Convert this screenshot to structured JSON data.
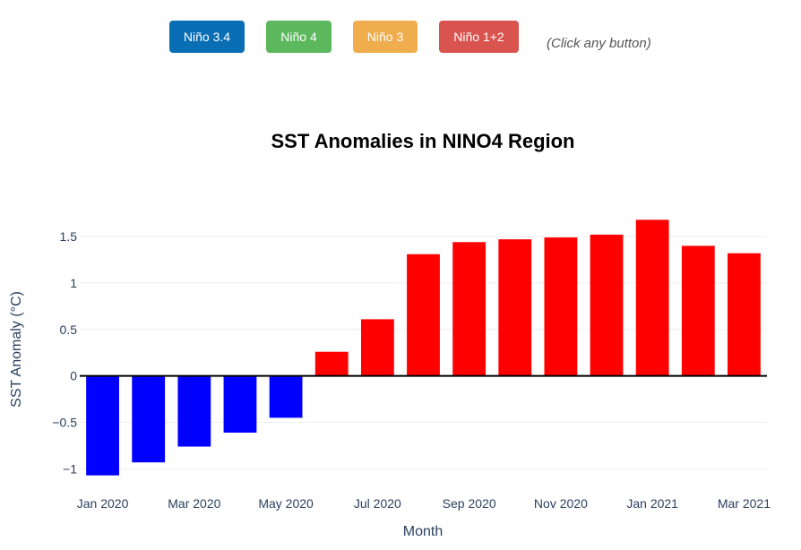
{
  "buttons": [
    {
      "label": "Niño 3.4",
      "color": "#0a6eb4"
    },
    {
      "label": "Niño 4",
      "color": "#5cb85c"
    },
    {
      "label": "Niño 3",
      "color": "#f0ad4e"
    },
    {
      "label": "Niño 1+2",
      "color": "#d9534f"
    }
  ],
  "hint": "(Click any button)",
  "colors": {
    "negative": "#0000ff",
    "positive": "#ff0000",
    "axis_text": "#2a3f5f",
    "grid": "#eeeeee"
  },
  "chart_data": {
    "type": "bar",
    "title": "SST Anomalies in NINO4 Region",
    "xlabel": "Month",
    "ylabel": "SST Anomaly (°C)",
    "categories": [
      "Jan 2020",
      "Feb 2020",
      "Mar 2020",
      "Apr 2020",
      "May 2020",
      "Jun 2020",
      "Jul 2020",
      "Aug 2020",
      "Sep 2020",
      "Oct 2020",
      "Nov 2020",
      "Dec 2020",
      "Jan 2021",
      "Feb 2021",
      "Mar 2021"
    ],
    "values": [
      -1.07,
      -0.93,
      -0.76,
      -0.61,
      -0.45,
      0.26,
      0.61,
      1.31,
      1.44,
      1.47,
      1.49,
      1.52,
      1.68,
      1.4,
      1.32
    ],
    "xticks": [
      "Jan 2020",
      "Mar 2020",
      "May 2020",
      "Jul 2020",
      "Sep 2020",
      "Nov 2020",
      "Jan 2021",
      "Mar 2021"
    ],
    "yticks": [
      -1,
      -0.5,
      0,
      0.5,
      1,
      1.5
    ],
    "ytick_labels": [
      "−1",
      "−0.5",
      "0",
      "0.5",
      "1",
      "1.5"
    ],
    "ylim": [
      -1.15,
      1.78
    ],
    "grid": true
  }
}
